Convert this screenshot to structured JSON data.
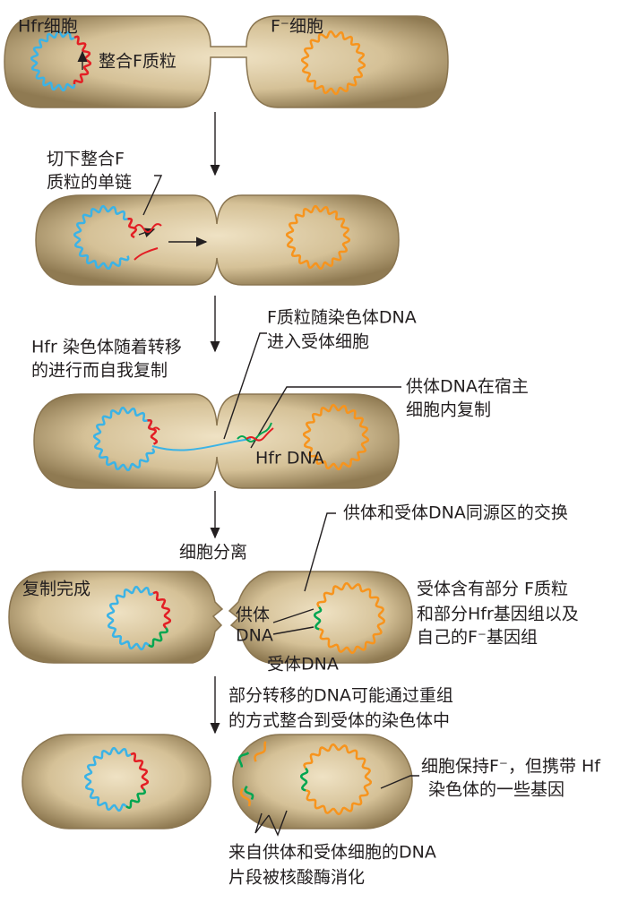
{
  "stage1": {
    "hfr_cell": "Hfr细胞",
    "f_minus_cell": "F⁻细胞",
    "integrated_plasmid": "整合F质粒"
  },
  "stage2": {
    "note_line1": "切下整合F",
    "note_line2": "质粒的单链"
  },
  "stage3": {
    "plasmid_line1": "F质粒随染色体DNA",
    "plasmid_line2": "进入受体细胞",
    "replication_line1": "Hfr 染色体随着转移",
    "replication_line2": "的进行而自我复制",
    "donor_line1": "供体DNA在宿主",
    "donor_line2": "细胞内复制",
    "hfr_dna": "Hfr DNA"
  },
  "stage4": {
    "exchange": "供体和受体DNA同源区的交换",
    "separation": "细胞分离",
    "complete": "复制完成",
    "donor_line1": "供体",
    "donor_line2": "DNA",
    "recipient_dna": "受体DNA",
    "result_line1": "受体含有部分 F质粒",
    "result_line2": "和部分Hfr基因组以及",
    "result_line3": "自己的F⁻基因组"
  },
  "stage5": {
    "recombine_line1": "部分转移的DNA可能通过重组",
    "recombine_line2": "的方式整合到受体的染色体中",
    "keep_line1": "细胞保持F⁻，但携带 Hf",
    "keep_line2": "染色体的一些基因",
    "digest_line1": "来自供体和受体细胞的DNA",
    "digest_line2": "片段被核酸酶消化"
  }
}
